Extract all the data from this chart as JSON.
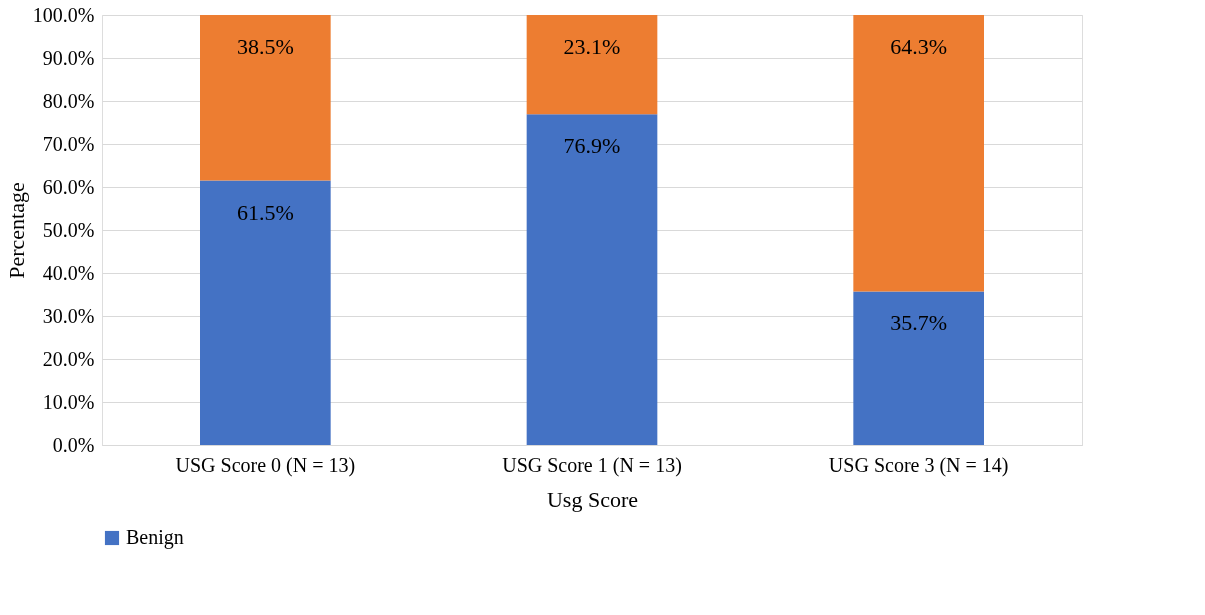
{
  "chart_data": {
    "type": "bar",
    "stacked": true,
    "xlabel": "Usg Score",
    "ylabel": "Percentage",
    "categories": [
      "USG Score 0 (N = 13)",
      "USG Score 1 (N = 13)",
      "USG Score 3 (N = 14)"
    ],
    "series": [
      {
        "name": "Benign",
        "color": "#4472c4",
        "values": [
          61.5,
          76.9,
          35.7
        ],
        "value_labels": [
          "61.5%",
          "76.9%",
          "35.7%"
        ]
      },
      {
        "color": "#ed7d31",
        "values": [
          38.5,
          23.1,
          64.3
        ],
        "value_labels": [
          "38.5%",
          "23.1%",
          "64.3%"
        ]
      }
    ],
    "ylim": [
      0,
      100
    ],
    "yticks": [
      {
        "value": 0,
        "label": "0.0%"
      },
      {
        "value": 10,
        "label": "10.0%"
      },
      {
        "value": 20,
        "label": "20.0%"
      },
      {
        "value": 30,
        "label": "30.0%"
      },
      {
        "value": 40,
        "label": "40.0%"
      },
      {
        "value": 50,
        "label": "50.0%"
      },
      {
        "value": 60,
        "label": "60.0%"
      },
      {
        "value": 70,
        "label": "70.0%"
      },
      {
        "value": 80,
        "label": "80.0%"
      },
      {
        "value": 90,
        "label": "90.0%"
      },
      {
        "value": 100,
        "label": "100.0%"
      }
    ],
    "grid": "y",
    "legend": "bottom"
  }
}
